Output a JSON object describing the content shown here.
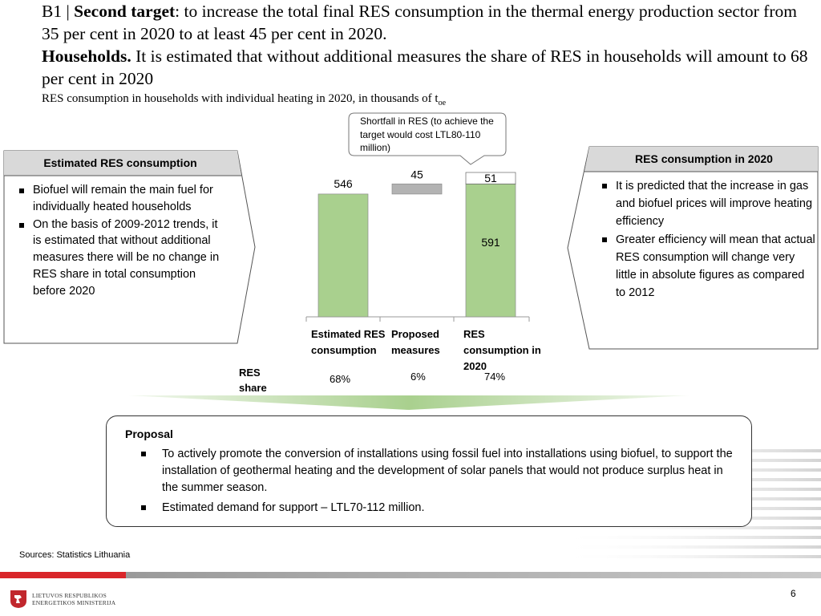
{
  "header": {
    "prefix": "B1 | ",
    "target_bold": "Second target",
    "target_text": ": to increase the total final RES consumption in the thermal energy production sector from 35 per cent in 2020 to at least 45 per cent in 2020.",
    "households_bold": "Households.",
    "households_text": " It is estimated that without additional measures the share of RES in households will amount to 68 per cent in 2020",
    "subtitle": "RES consumption in households with individual heating in 2020, in thousands of t",
    "subtitle_sub": "oe"
  },
  "left_box": {
    "title": "Estimated RES consumption",
    "bullets": [
      "Biofuel will remain the main fuel for individually heated households",
      "On the basis of 2009-2012 trends, it is estimated that without additional measures there will be no change in RES share in total consumption before 2020"
    ]
  },
  "right_box": {
    "title": "RES consumption in 2020",
    "bullets": [
      "It is predicted that the increase in gas and biofuel prices will improve heating efficiency",
      "Greater efficiency will mean that actual RES consumption will change very little in absolute figures as compared to 2012"
    ]
  },
  "callout": {
    "text": "Shortfall in RES (to achieve the target would cost LTL80-110 million)"
  },
  "chart_data": {
    "type": "bar",
    "subtype": "waterfall",
    "categories": [
      "Estimated RES consumption",
      "Proposed measures",
      "RES consumption in 2020"
    ],
    "bars": [
      {
        "category": "Estimated RES consumption",
        "base": 0,
        "value": 546,
        "label": "546",
        "color": "#a9d08e"
      },
      {
        "category": "Proposed measures",
        "base": 546,
        "value": 45,
        "label": "45",
        "color": "#b3b3b3"
      },
      {
        "category": "RES consumption in 2020",
        "base": 0,
        "value": 591,
        "label": "591",
        "color": "#a9d08e"
      },
      {
        "category": "RES consumption in 2020",
        "base": 591,
        "value": 51,
        "label": "51",
        "color": "#ffffff"
      }
    ],
    "ylim": [
      0,
      642
    ],
    "res_share_label": "RES share",
    "res_share": [
      "68%",
      "6%",
      "74%"
    ]
  },
  "proposal": {
    "title": "Proposal",
    "bullets": [
      "To actively promote the conversion of installations using fossil fuel into installations using biofuel, to support the installation of geothermal heating and the development of solar panels that would not produce surplus heat in the summer season.",
      "Estimated demand for support – LTL70-112 million."
    ]
  },
  "footer": {
    "sources": "Sources: Statistics Lithuania",
    "logo_line1": "LIETUVOS RESPUBLIKOS",
    "logo_line2": "ENERGETIKOS MINISTERIJA",
    "page_number": "6"
  },
  "colors": {
    "accent_red": "#d9262a",
    "bar_green": "#a9d08e",
    "bar_gray": "#b3b3b3",
    "band_green": "#a9d08e"
  }
}
